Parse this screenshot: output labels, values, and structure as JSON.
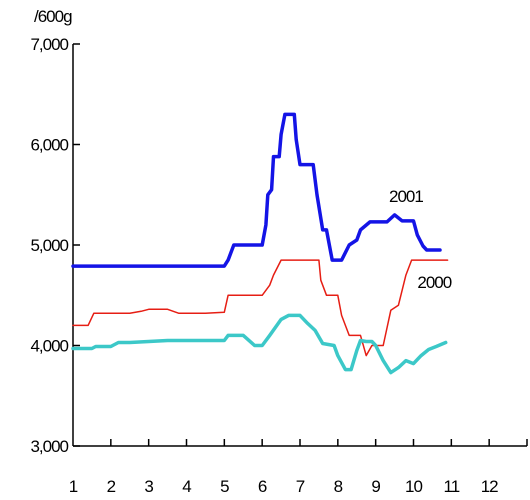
{
  "chart_data": {
    "type": "line",
    "title": "",
    "unit_label": "/600g",
    "xlabel": "",
    "ylabel": "",
    "x_ticks": [
      "1",
      "2",
      "3",
      "4",
      "5",
      "6",
      "7",
      "8",
      "9",
      "10",
      "11",
      "12"
    ],
    "y_ticks": [
      "3,000",
      "4,000",
      "5,000",
      "6,000",
      "7,000"
    ],
    "xlim": [
      1,
      13
    ],
    "ylim": [
      3000,
      7000
    ],
    "grid": false,
    "series": [
      {
        "name": "2001",
        "color": "#1414e6",
        "width": 3.5,
        "label_at": [
          9.8,
          5430
        ],
        "points": [
          [
            1.0,
            4790
          ],
          [
            5.0,
            4790
          ],
          [
            5.1,
            4850
          ],
          [
            5.25,
            5000
          ],
          [
            5.5,
            5000
          ],
          [
            6.0,
            5000
          ],
          [
            6.1,
            5200
          ],
          [
            6.15,
            5500
          ],
          [
            6.25,
            5550
          ],
          [
            6.3,
            5880
          ],
          [
            6.45,
            5880
          ],
          [
            6.5,
            6100
          ],
          [
            6.6,
            6300
          ],
          [
            6.85,
            6300
          ],
          [
            6.9,
            6050
          ],
          [
            7.0,
            5800
          ],
          [
            7.35,
            5800
          ],
          [
            7.45,
            5500
          ],
          [
            7.6,
            5150
          ],
          [
            7.7,
            5150
          ],
          [
            7.85,
            4850
          ],
          [
            8.1,
            4850
          ],
          [
            8.3,
            5000
          ],
          [
            8.5,
            5050
          ],
          [
            8.6,
            5150
          ],
          [
            8.85,
            5230
          ],
          [
            9.3,
            5230
          ],
          [
            9.5,
            5300
          ],
          [
            9.7,
            5240
          ],
          [
            10.0,
            5240
          ],
          [
            10.1,
            5100
          ],
          [
            10.25,
            4990
          ],
          [
            10.35,
            4950
          ],
          [
            10.7,
            4950
          ]
        ]
      },
      {
        "name": "2000",
        "color": "#e61e14",
        "width": 1.5,
        "label_at": [
          10.55,
          4570
        ],
        "points": [
          [
            1.0,
            4200
          ],
          [
            1.4,
            4200
          ],
          [
            1.55,
            4320
          ],
          [
            2.0,
            4320
          ],
          [
            2.5,
            4320
          ],
          [
            2.8,
            4340
          ],
          [
            3.0,
            4360
          ],
          [
            3.5,
            4360
          ],
          [
            3.8,
            4320
          ],
          [
            4.5,
            4320
          ],
          [
            5.0,
            4330
          ],
          [
            5.1,
            4500
          ],
          [
            5.3,
            4500
          ],
          [
            6.0,
            4500
          ],
          [
            6.2,
            4600
          ],
          [
            6.3,
            4700
          ],
          [
            6.5,
            4850
          ],
          [
            7.5,
            4850
          ],
          [
            7.55,
            4650
          ],
          [
            7.7,
            4500
          ],
          [
            8.0,
            4500
          ],
          [
            8.1,
            4300
          ],
          [
            8.3,
            4100
          ],
          [
            8.6,
            4100
          ],
          [
            8.75,
            3900
          ],
          [
            8.9,
            4000
          ],
          [
            9.2,
            4000
          ],
          [
            9.4,
            4350
          ],
          [
            9.6,
            4400
          ],
          [
            9.8,
            4700
          ],
          [
            9.95,
            4850
          ],
          [
            10.9,
            4850
          ]
        ]
      },
      {
        "name": "",
        "color": "#3cc8c8",
        "width": 3.5,
        "label_at": null,
        "points": [
          [
            1.0,
            3970
          ],
          [
            1.5,
            3970
          ],
          [
            1.6,
            3990
          ],
          [
            2.0,
            3990
          ],
          [
            2.2,
            4030
          ],
          [
            2.5,
            4030
          ],
          [
            3.0,
            4040
          ],
          [
            3.5,
            4050
          ],
          [
            5.0,
            4050
          ],
          [
            5.1,
            4100
          ],
          [
            5.5,
            4100
          ],
          [
            5.8,
            4000
          ],
          [
            6.0,
            4000
          ],
          [
            6.2,
            4100
          ],
          [
            6.5,
            4260
          ],
          [
            6.7,
            4300
          ],
          [
            7.0,
            4300
          ],
          [
            7.2,
            4220
          ],
          [
            7.4,
            4150
          ],
          [
            7.6,
            4020
          ],
          [
            7.9,
            4000
          ],
          [
            8.0,
            3900
          ],
          [
            8.2,
            3760
          ],
          [
            8.35,
            3760
          ],
          [
            8.5,
            3950
          ],
          [
            8.6,
            4050
          ],
          [
            8.75,
            4040
          ],
          [
            8.9,
            4040
          ],
          [
            9.0,
            4000
          ],
          [
            9.2,
            3850
          ],
          [
            9.4,
            3730
          ],
          [
            9.6,
            3780
          ],
          [
            9.8,
            3850
          ],
          [
            10.0,
            3820
          ],
          [
            10.2,
            3900
          ],
          [
            10.4,
            3960
          ],
          [
            10.6,
            3990
          ],
          [
            10.85,
            4030
          ]
        ]
      }
    ]
  }
}
